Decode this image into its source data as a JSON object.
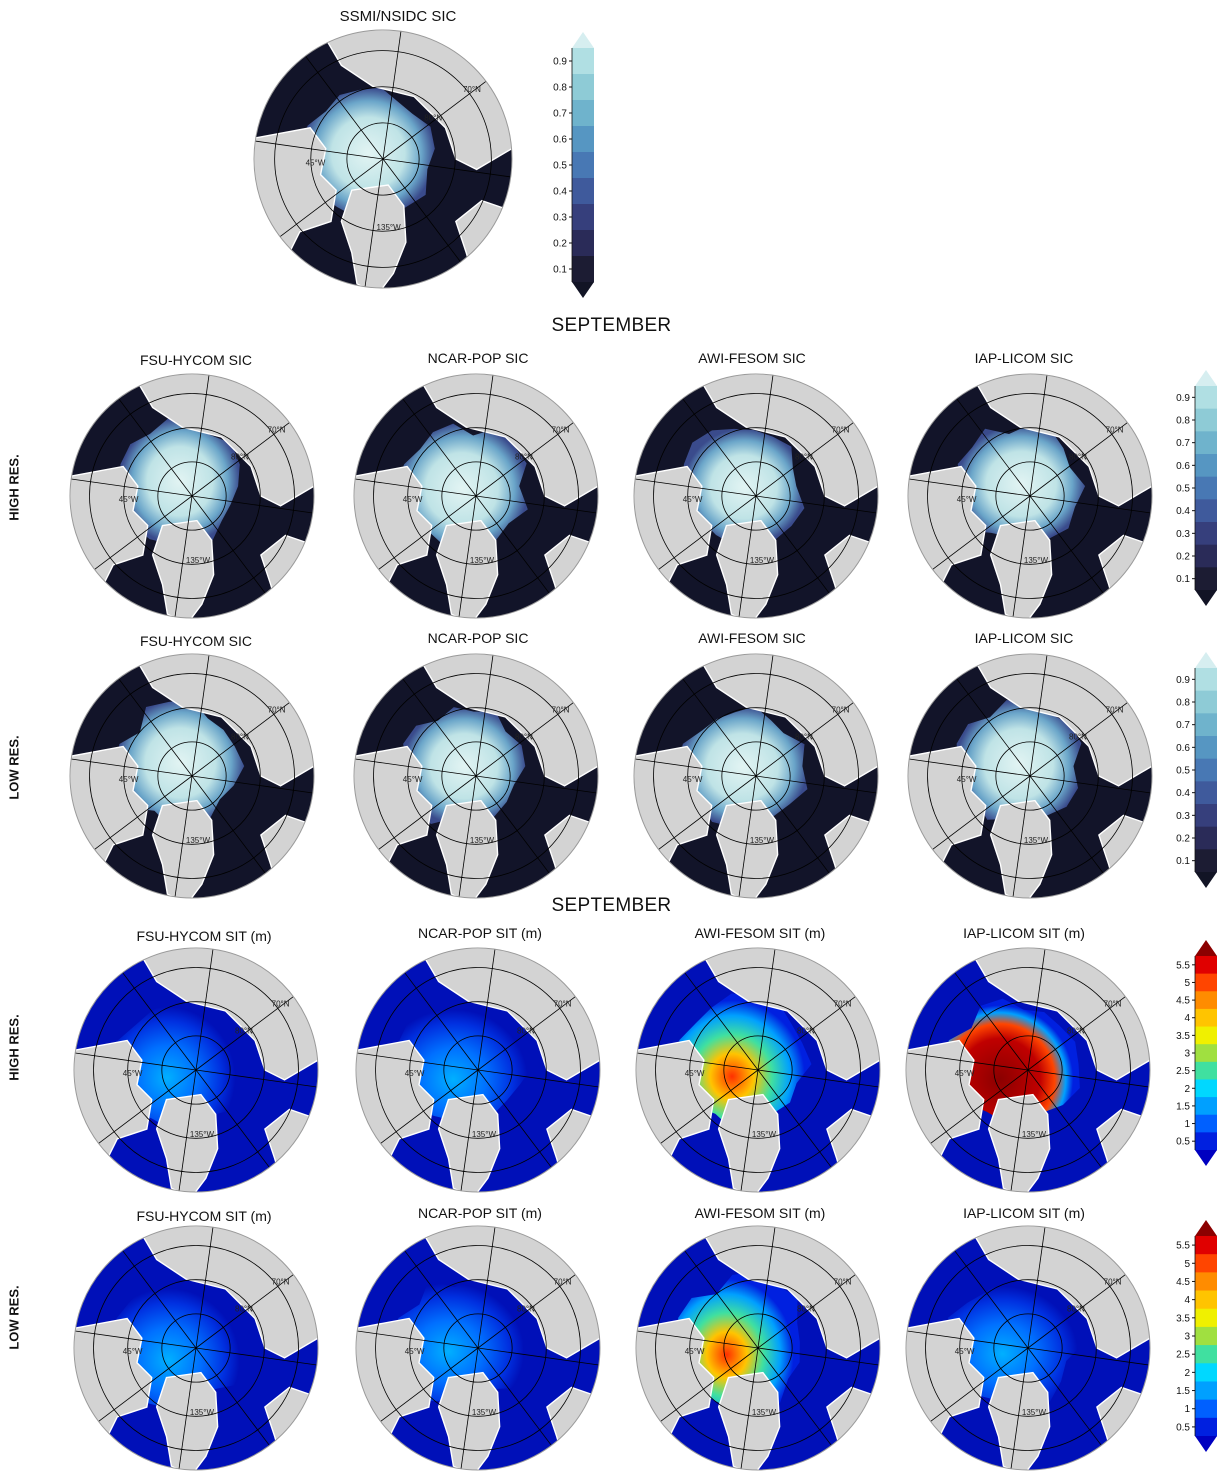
{
  "obs": {
    "title": "SSMI/NSIDC SIC"
  },
  "section_labels": {
    "sic": "SEPTEMBER",
    "sit": "SEPTEMBER"
  },
  "row_labels": {
    "high": "HIGH RES.",
    "low": "LOW RES."
  },
  "sic_rows": {
    "high": [
      "FSU-HYCOM SIC",
      "NCAR-POP SIC",
      "AWI-FESOM SIC",
      "IAP-LICOM SIC"
    ],
    "low": [
      "FSU-HYCOM SIC",
      "NCAR-POP SIC",
      "AWI-FESOM SIC",
      "IAP-LICOM SIC"
    ]
  },
  "sit_rows": {
    "high": [
      "FSU-HYCOM SIT (m)",
      "NCAR-POP SIT (m)",
      "AWI-FESOM SIT (m)",
      "IAP-LICOM SIT (m)"
    ],
    "low": [
      "FSU-HYCOM SIT (m)",
      "NCAR-POP  SIT (m)",
      "AWI-FESOM SIT (m)",
      "IAP-LICOM SIT (m)"
    ]
  },
  "graticule_labels": [
    "80°N",
    "70°N",
    "45°W",
    "135°W"
  ],
  "sic_colorbar": {
    "ticks": [
      "0.9",
      "0.8",
      "0.7",
      "0.6",
      "0.5",
      "0.4",
      "0.3",
      "0.2",
      "0.1"
    ],
    "colors": [
      "#d6eef0",
      "#b0dfe3",
      "#8ecbd6",
      "#6fb3cc",
      "#5696c2",
      "#4878b4",
      "#3f5a9c",
      "#363f7c",
      "#2a2b58",
      "#1c1c33",
      "#121425"
    ]
  },
  "sit_colorbar": {
    "ticks": [
      "5.5",
      "5",
      "4.5",
      "4",
      "3.5",
      "3",
      "2.5",
      "2",
      "1.5",
      "1",
      "0.5"
    ],
    "colors": [
      "#8b0000",
      "#e00000",
      "#ff4500",
      "#ff8c00",
      "#ffc400",
      "#f0f000",
      "#a0e040",
      "#40e0a0",
      "#00d8ff",
      "#00a0ff",
      "#0060ff",
      "#0020e0",
      "#0000c0"
    ]
  },
  "map_colors": {
    "land": "#d3d3d3",
    "ocean_sic": "#121429",
    "ocean_sit": "#0010b8",
    "coast": "#ffffff"
  }
}
